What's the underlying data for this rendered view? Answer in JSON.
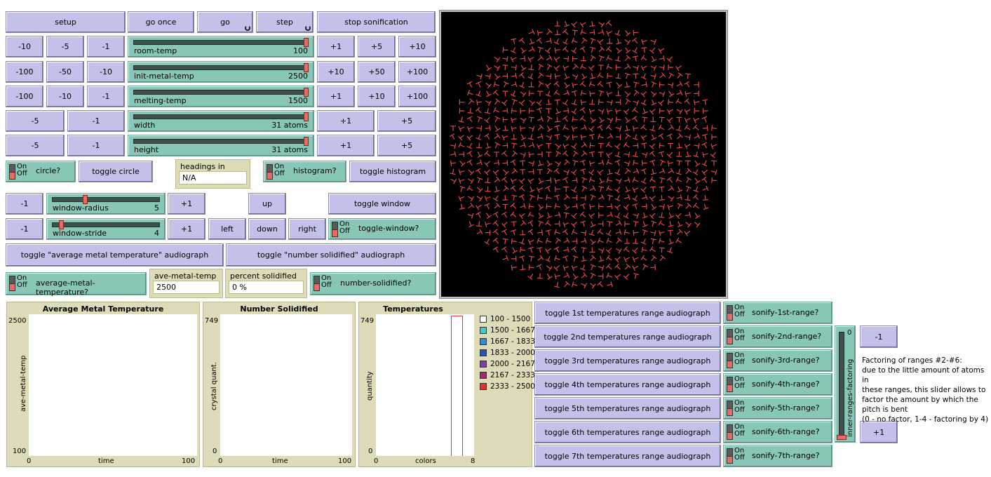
{
  "buttons": {
    "setup": "setup",
    "go_once": "go once",
    "go": "go",
    "step": "step",
    "stop_sonification": "stop sonification",
    "rt_m10": "-10",
    "rt_m5": "-5",
    "rt_m1": "-1",
    "rt_p1": "+1",
    "rt_p5": "+5",
    "rt_p10": "+10",
    "imt_m100": "-100",
    "imt_m50": "-50",
    "imt_m10": "-10",
    "imt_p10": "+10",
    "imt_p50": "+50",
    "imt_p100": "+100",
    "mt_m100": "-100",
    "mt_m10": "-10",
    "mt_m1": "-1",
    "mt_p1": "+1",
    "mt_p10": "+10",
    "mt_p100": "+100",
    "w_m5": "-5",
    "w_m1": "-1",
    "w_p1": "+1",
    "w_p5": "+5",
    "h_m5": "-5",
    "h_m1": "-1",
    "h_p1": "+1",
    "h_p5": "+5",
    "toggle_circle": "toggle circle",
    "toggle_histogram": "toggle histogram",
    "wr_m1": "-1",
    "wr_p1": "+1",
    "up": "up",
    "toggle_window": "toggle window",
    "ws_m1": "-1",
    "ws_p1": "+1",
    "left": "left",
    "down": "down",
    "right": "right",
    "toggle_avg_audio": "toggle \"average metal temperature\" audiograph",
    "toggle_num_audio": "toggle \"number solidified\" audiograph",
    "range1": "toggle 1st temperatures range audiograph",
    "range2": "toggle 2nd temperatures range audiograph",
    "range3": "toggle 3rd temperatures range audiograph",
    "range4": "toggle 4th temperatures range audiograph",
    "range5": "toggle 5th temperatures range audiograph",
    "range6": "toggle 6th temperatures range audiograph",
    "range7": "toggle 7th temperatures range audiograph",
    "irf_m1": "-1",
    "irf_p1": "+1"
  },
  "sliders": {
    "room_temp": {
      "label": "room-temp",
      "value": "100",
      "fraction": 1.0
    },
    "init_metal_temp": {
      "label": "init-metal-temp",
      "value": "2500",
      "fraction": 1.0
    },
    "melting_temp": {
      "label": "melting-temp",
      "value": "1500",
      "fraction": 1.0
    },
    "width": {
      "label": "width",
      "value": "31 atoms",
      "fraction": 1.0
    },
    "height": {
      "label": "height",
      "value": "31 atoms",
      "fraction": 1.0
    },
    "window_radius": {
      "label": "window-radius",
      "value": "5",
      "fraction": 0.3
    },
    "window_stride": {
      "label": "window-stride",
      "value": "4",
      "fraction": 0.07
    },
    "inner_ranges_factoring": {
      "label": "inner-ranges-factoring",
      "value": "0",
      "fraction": 0.0
    }
  },
  "switches": {
    "on": "On",
    "off": "Off",
    "circle": "circle?",
    "histogram": "histogram?",
    "toggle_window": "toggle-window?",
    "avg_metal": "average-metal-temperature?",
    "num_solidified": "number-solidified?",
    "s1": "sonify-1st-range?",
    "s2": "sonify-2nd-range?",
    "s3": "sonify-3rd-range?",
    "s4": "sonify-4th-range?",
    "s5": "sonify-5th-range?",
    "s6": "sonify-6th-range?",
    "s7": "sonify-7th-range?"
  },
  "monitors": {
    "headings": {
      "label": "headings in window",
      "value": "N/A"
    },
    "ave_metal_temp": {
      "label": "ave-metal-temp",
      "value": "2500"
    },
    "percent_solidified": {
      "label": "percent solidified",
      "value": "0 %"
    }
  },
  "plots": {
    "avg": {
      "title": "Average Metal Temperature",
      "ylabel": "ave-metal-temp",
      "xlabel": "time",
      "xmin": "0",
      "xmax": "100",
      "ymin": "100",
      "ymax": "2500"
    },
    "num": {
      "title": "Number Solidified",
      "ylabel": "crystal quant.",
      "xlabel": "time",
      "xmin": "0",
      "xmax": "100",
      "ymin": "0",
      "ymax": "749"
    },
    "temps": {
      "title": "Temperatures",
      "ylabel": "quantity",
      "xlabel": "colors",
      "xmin": "0",
      "xmax": "8",
      "ymin": "0",
      "ymax": "749"
    }
  },
  "legend": [
    {
      "label": "100 - 1500",
      "color": "#ffffff"
    },
    {
      "label": "1500 - 1667",
      "color": "#45c8c8"
    },
    {
      "label": "1667 - 1833",
      "color": "#2f8ecf"
    },
    {
      "label": "1833 - 2000",
      "color": "#3050b0"
    },
    {
      "label": "2000 - 2167",
      "color": "#7a3fa8"
    },
    {
      "label": "2167 - 2333",
      "color": "#a8286e"
    },
    {
      "label": "2333 - 2500",
      "color": "#e03030"
    }
  ],
  "note": {
    "line1": "Factoring of ranges #2-#6:",
    "line2": "due to the little amount of atoms in",
    "line3": "these ranges, this slider allows to",
    "line4": "factor the amount by which the",
    "line5": "pitch is bent",
    "line6": "(0 - no factor, 1-4 - factoring by 4)"
  },
  "colors": {
    "button": "#c3c0ea",
    "slider": "#88c6b8",
    "monitor": "#dedbb9",
    "atom": "#e04848",
    "world": "#000000"
  }
}
